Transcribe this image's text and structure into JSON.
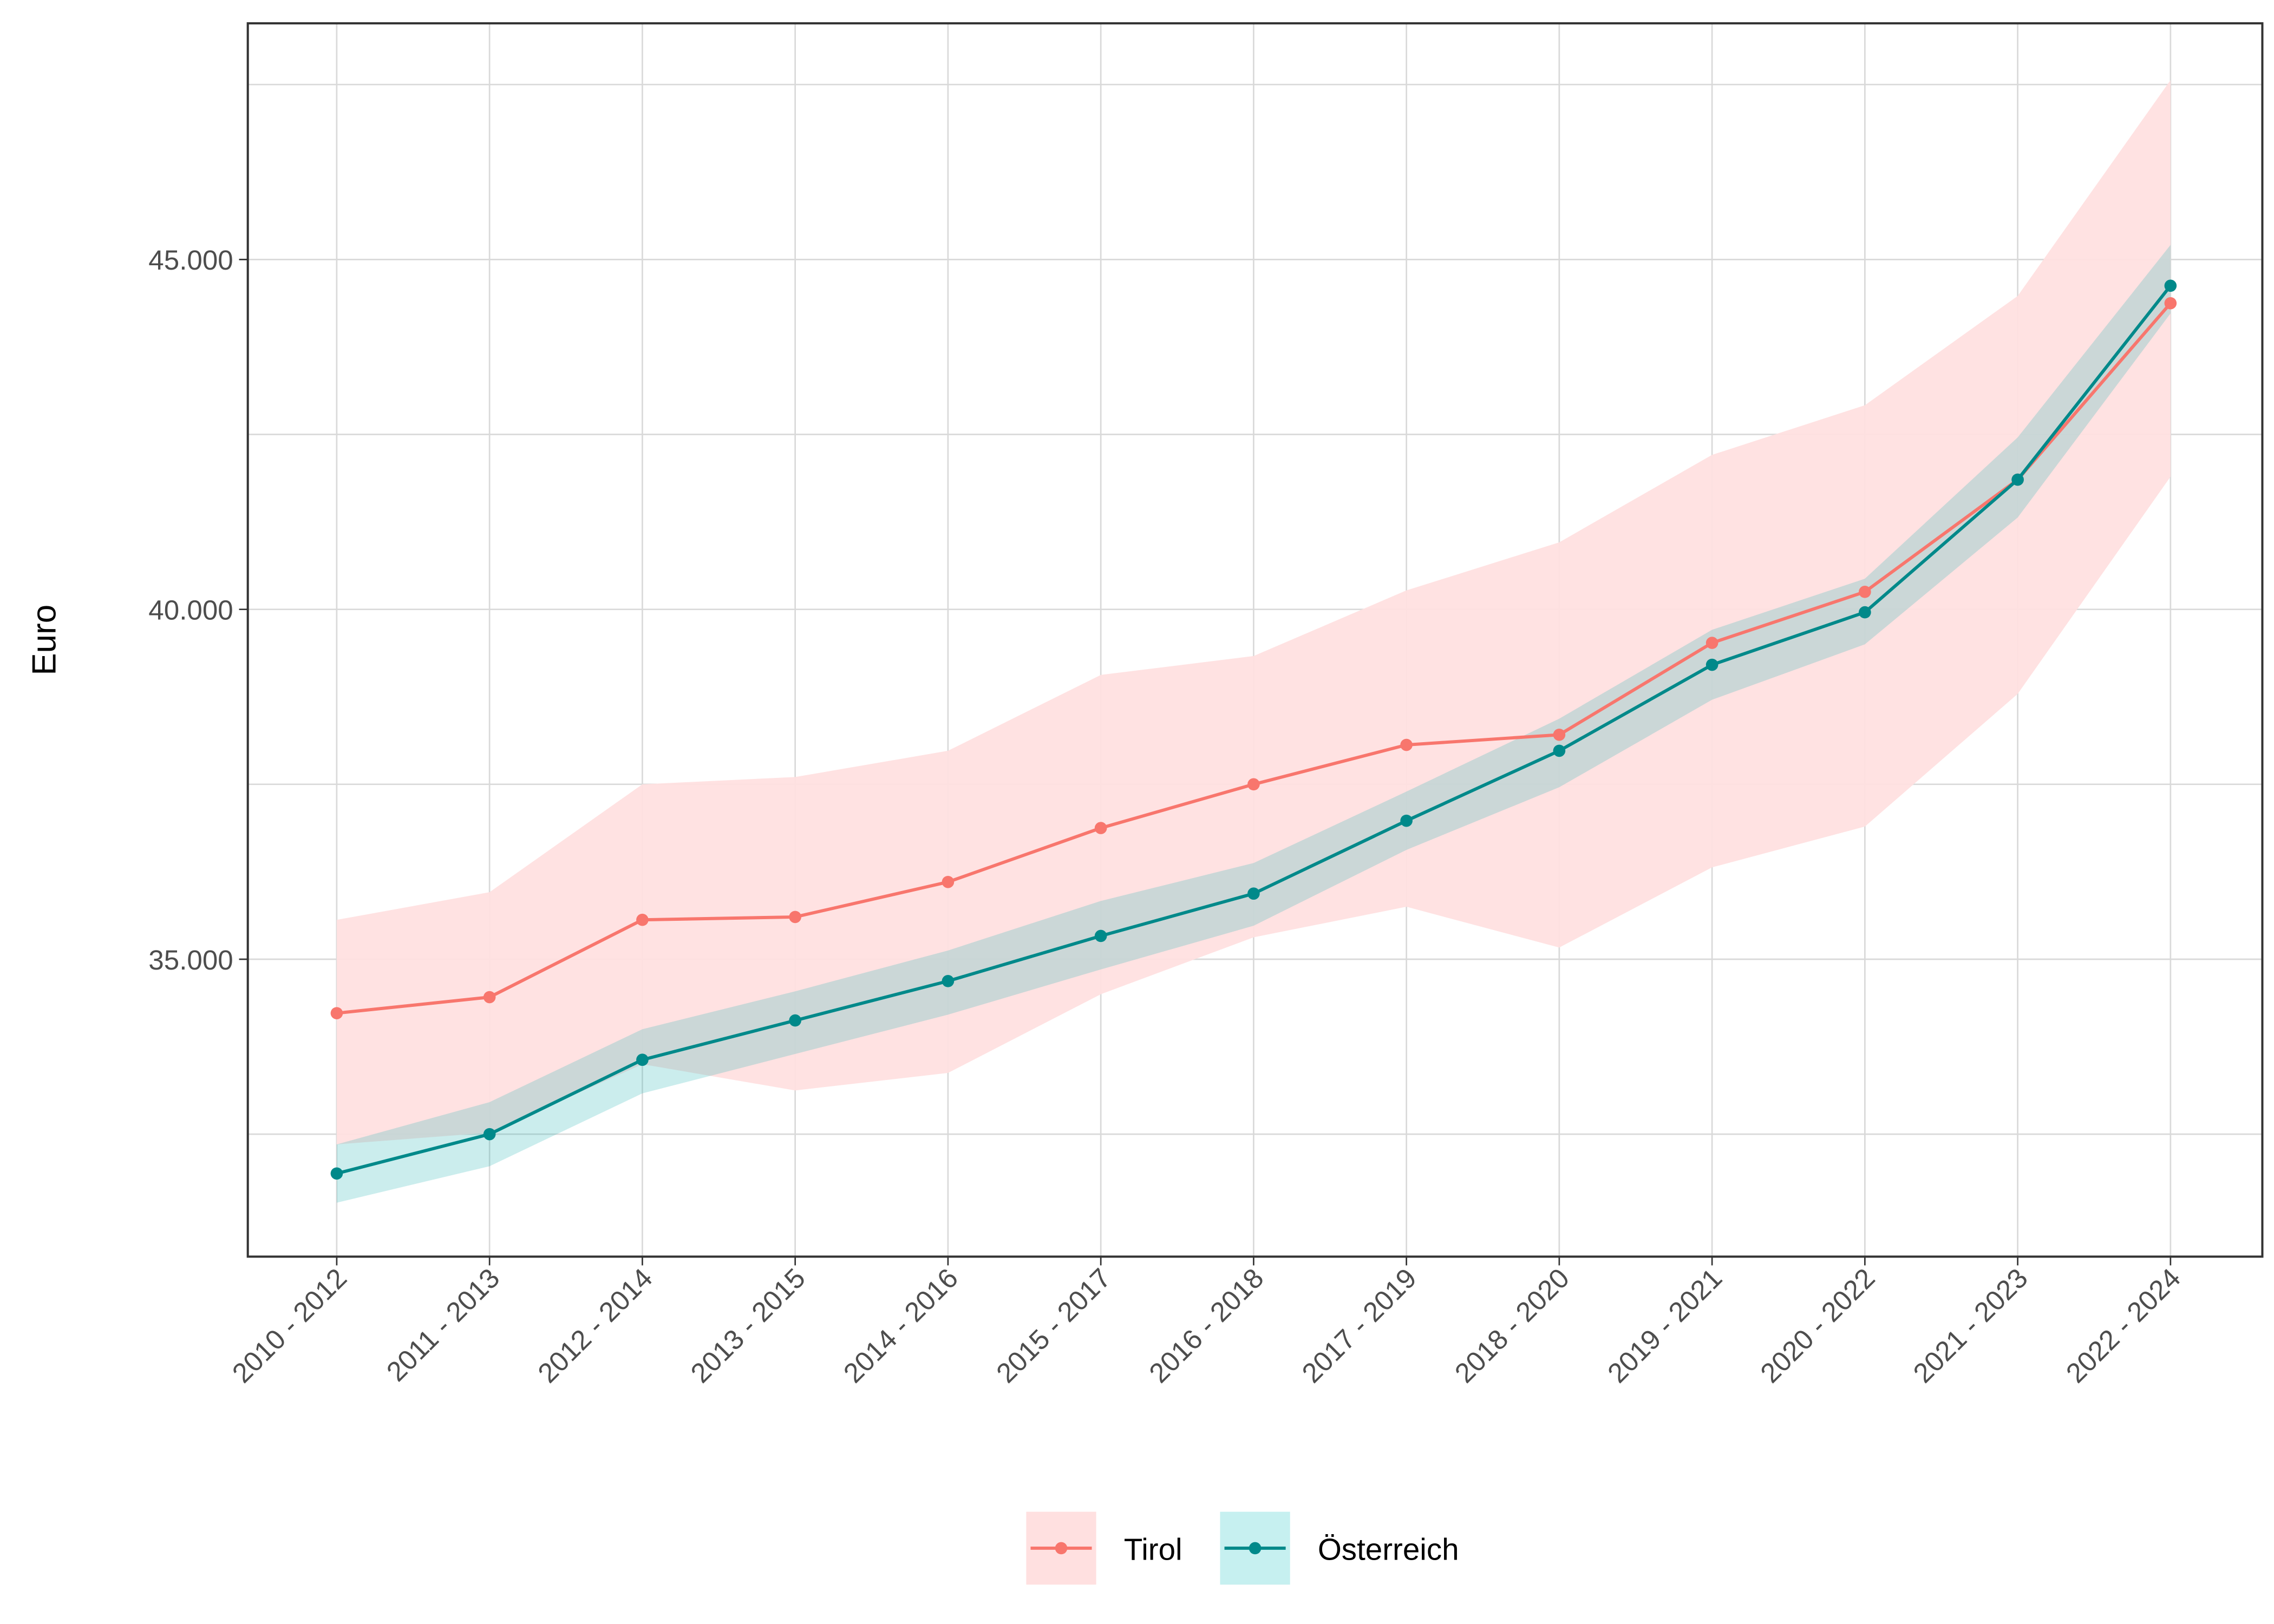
{
  "chart_data": {
    "type": "line",
    "title": "",
    "xlabel": "",
    "ylabel": "Euro",
    "categories": [
      "2010 - 2012",
      "2011 - 2013",
      "2012 - 2014",
      "2013 - 2015",
      "2014 - 2016",
      "2015 - 2017",
      "2016 - 2018",
      "2017 - 2019",
      "2018 - 2020",
      "2019 - 2021",
      "2020 - 2022",
      "2021 - 2023",
      "2022 - 2024"
    ],
    "ylim": [
      30750,
      48375
    ],
    "yticks": [
      35000,
      40000,
      45000
    ],
    "ytick_labels": [
      "35.000",
      "40.000",
      "45.000"
    ],
    "grid": true,
    "legend_position": "bottom",
    "series": [
      {
        "name": "Tirol",
        "color": "#F8766D",
        "band_color": "#FFE0E0",
        "values": [
          34229,
          34458,
          35563,
          35604,
          36104,
          36875,
          37500,
          38063,
          38208,
          39521,
          40250,
          41854,
          44375
        ],
        "upper": [
          35563,
          35958,
          37500,
          37604,
          37979,
          39063,
          39333,
          40271,
          40958,
          42208,
          42917,
          44479,
          47563
        ],
        "lower": [
          32354,
          32521,
          33500,
          33125,
          33375,
          34500,
          35313,
          35750,
          35167,
          36313,
          36896,
          38792,
          41896
        ]
      },
      {
        "name": "Österreich",
        "color": "#00898A",
        "band_color": "#C6F0F0",
        "values": [
          31938,
          32500,
          33563,
          34125,
          34688,
          35333,
          35938,
          36979,
          37979,
          39208,
          39958,
          41854,
          44625
        ],
        "upper": [
          32354,
          32958,
          34000,
          34542,
          35125,
          35833,
          36375,
          37396,
          38438,
          39708,
          40438,
          42458,
          45208
        ],
        "lower": [
          31521,
          32042,
          33083,
          33646,
          34208,
          34854,
          35479,
          36563,
          37458,
          38708,
          39500,
          41313,
          44229
        ]
      }
    ]
  }
}
